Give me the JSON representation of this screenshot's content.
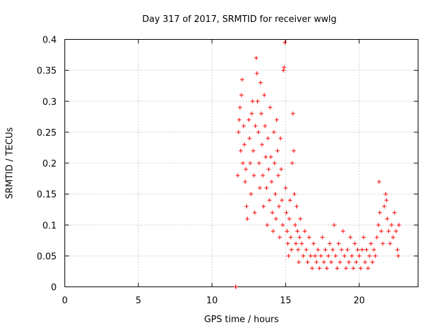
{
  "chart_data": {
    "type": "scatter",
    "title": "Day 317 of 2017, SRMTID for receiver wwlg",
    "xlabel": "GPS time / hours",
    "ylabel": "SRMTID / TECUs",
    "xlim": [
      0,
      24
    ],
    "ylim": [
      0,
      0.4
    ],
    "xticks": [
      0,
      5,
      10,
      15,
      20
    ],
    "xtick_labels": [
      "0",
      "5",
      "10",
      "15",
      "20"
    ],
    "yticks": [
      0,
      0.05,
      0.1,
      0.15,
      0.2,
      0.25,
      0.3,
      0.35,
      0.4
    ],
    "ytick_labels": [
      "0",
      "0.05",
      "0.1",
      "0.15",
      "0.2",
      "0.25",
      "0.3",
      "0.35",
      "0.4"
    ],
    "grid": true,
    "marker": "+",
    "color": "#ff0000",
    "series": [
      {
        "name": "SRMTID",
        "points": [
          [
            11.6,
            0.0
          ],
          [
            11.62,
            0.0
          ],
          [
            11.75,
            0.18
          ],
          [
            11.8,
            0.25
          ],
          [
            11.85,
            0.27
          ],
          [
            11.9,
            0.29
          ],
          [
            11.95,
            0.22
          ],
          [
            12.0,
            0.31
          ],
          [
            12.05,
            0.335
          ],
          [
            12.1,
            0.2
          ],
          [
            12.15,
            0.26
          ],
          [
            12.2,
            0.23
          ],
          [
            12.25,
            0.17
          ],
          [
            12.3,
            0.19
          ],
          [
            12.35,
            0.13
          ],
          [
            12.4,
            0.11
          ],
          [
            12.5,
            0.27
          ],
          [
            12.55,
            0.24
          ],
          [
            12.6,
            0.2
          ],
          [
            12.65,
            0.15
          ],
          [
            12.7,
            0.28
          ],
          [
            12.75,
            0.3
          ],
          [
            12.8,
            0.22
          ],
          [
            12.85,
            0.18
          ],
          [
            12.9,
            0.12
          ],
          [
            12.95,
            0.26
          ],
          [
            13.0,
            0.37
          ],
          [
            13.05,
            0.345
          ],
          [
            13.1,
            0.3
          ],
          [
            13.15,
            0.25
          ],
          [
            13.2,
            0.2
          ],
          [
            13.25,
            0.16
          ],
          [
            13.3,
            0.33
          ],
          [
            13.35,
            0.28
          ],
          [
            13.4,
            0.23
          ],
          [
            13.45,
            0.18
          ],
          [
            13.5,
            0.13
          ],
          [
            13.55,
            0.31
          ],
          [
            13.6,
            0.26
          ],
          [
            13.65,
            0.21
          ],
          [
            13.7,
            0.16
          ],
          [
            13.75,
            0.1
          ],
          [
            13.8,
            0.24
          ],
          [
            13.85,
            0.19
          ],
          [
            13.9,
            0.14
          ],
          [
            13.95,
            0.29
          ],
          [
            14.0,
            0.21
          ],
          [
            14.05,
            0.17
          ],
          [
            14.1,
            0.12
          ],
          [
            14.15,
            0.09
          ],
          [
            14.2,
            0.25
          ],
          [
            14.25,
            0.2
          ],
          [
            14.3,
            0.15
          ],
          [
            14.35,
            0.11
          ],
          [
            14.4,
            0.27
          ],
          [
            14.45,
            0.22
          ],
          [
            14.5,
            0.18
          ],
          [
            14.55,
            0.13
          ],
          [
            14.6,
            0.08
          ],
          [
            14.65,
            0.24
          ],
          [
            14.7,
            0.19
          ],
          [
            14.75,
            0.14
          ],
          [
            14.8,
            0.1
          ],
          [
            14.85,
            0.35
          ],
          [
            14.9,
            0.355
          ],
          [
            14.95,
            0.395
          ],
          [
            15.0,
            0.16
          ],
          [
            15.05,
            0.12
          ],
          [
            15.1,
            0.09
          ],
          [
            15.15,
            0.07
          ],
          [
            15.2,
            0.05
          ],
          [
            15.25,
            0.11
          ],
          [
            15.3,
            0.14
          ],
          [
            15.35,
            0.08
          ],
          [
            15.4,
            0.06
          ],
          [
            15.45,
            0.2
          ],
          [
            15.5,
            0.28
          ],
          [
            15.55,
            0.22
          ],
          [
            15.6,
            0.15
          ],
          [
            15.65,
            0.1
          ],
          [
            15.7,
            0.07
          ],
          [
            15.75,
            0.13
          ],
          [
            15.8,
            0.09
          ],
          [
            15.85,
            0.06
          ],
          [
            15.9,
            0.04
          ],
          [
            15.95,
            0.08
          ],
          [
            16.0,
            0.11
          ],
          [
            16.1,
            0.07
          ],
          [
            16.2,
            0.05
          ],
          [
            16.3,
            0.09
          ],
          [
            16.4,
            0.06
          ],
          [
            16.5,
            0.04
          ],
          [
            16.6,
            0.08
          ],
          [
            16.7,
            0.05
          ],
          [
            16.8,
            0.03
          ],
          [
            16.9,
            0.07
          ],
          [
            17.0,
            0.05
          ],
          [
            17.1,
            0.04
          ],
          [
            17.2,
            0.06
          ],
          [
            17.3,
            0.03
          ],
          [
            17.4,
            0.05
          ],
          [
            17.5,
            0.08
          ],
          [
            17.6,
            0.04
          ],
          [
            17.7,
            0.06
          ],
          [
            17.8,
            0.03
          ],
          [
            17.9,
            0.05
          ],
          [
            18.0,
            0.07
          ],
          [
            18.1,
            0.04
          ],
          [
            18.2,
            0.06
          ],
          [
            18.3,
            0.1
          ],
          [
            18.4,
            0.05
          ],
          [
            18.5,
            0.03
          ],
          [
            18.6,
            0.07
          ],
          [
            18.7,
            0.04
          ],
          [
            18.8,
            0.06
          ],
          [
            18.9,
            0.09
          ],
          [
            19.0,
            0.05
          ],
          [
            19.1,
            0.03
          ],
          [
            19.2,
            0.06
          ],
          [
            19.3,
            0.04
          ],
          [
            19.4,
            0.08
          ],
          [
            19.5,
            0.05
          ],
          [
            19.6,
            0.03
          ],
          [
            19.7,
            0.07
          ],
          [
            19.8,
            0.04
          ],
          [
            19.9,
            0.06
          ],
          [
            20.0,
            0.05
          ],
          [
            20.1,
            0.03
          ],
          [
            20.2,
            0.06
          ],
          [
            20.3,
            0.08
          ],
          [
            20.4,
            0.04
          ],
          [
            20.5,
            0.06
          ],
          [
            20.6,
            0.03
          ],
          [
            20.7,
            0.05
          ],
          [
            20.8,
            0.07
          ],
          [
            20.9,
            0.04
          ],
          [
            21.0,
            0.06
          ],
          [
            21.1,
            0.05
          ],
          [
            21.2,
            0.08
          ],
          [
            21.3,
            0.1
          ],
          [
            21.35,
            0.17
          ],
          [
            21.4,
            0.12
          ],
          [
            21.5,
            0.09
          ],
          [
            21.6,
            0.07
          ],
          [
            21.7,
            0.13
          ],
          [
            21.8,
            0.15
          ],
          [
            21.85,
            0.14
          ],
          [
            21.9,
            0.11
          ],
          [
            22.0,
            0.09
          ],
          [
            22.1,
            0.07
          ],
          [
            22.2,
            0.1
          ],
          [
            22.3,
            0.08
          ],
          [
            22.4,
            0.12
          ],
          [
            22.5,
            0.09
          ],
          [
            22.6,
            0.06
          ],
          [
            22.65,
            0.05
          ],
          [
            22.7,
            0.1
          ]
        ]
      }
    ]
  }
}
